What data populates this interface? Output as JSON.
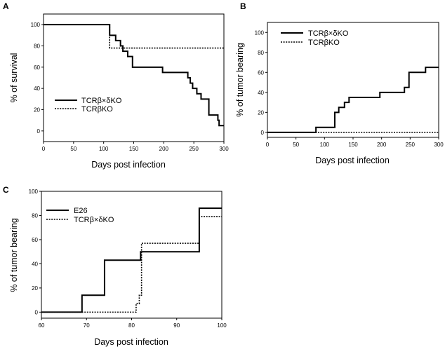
{
  "chart_data": [
    {
      "panel": "A",
      "type": "line",
      "step": true,
      "xlabel": "Days post infection",
      "ylabel": "% of survival",
      "xlim": [
        0,
        300
      ],
      "ylim": [
        -10,
        110
      ],
      "xticks": [
        0,
        50,
        100,
        150,
        200,
        250,
        300
      ],
      "yticks": [
        0,
        20,
        40,
        60,
        80,
        100
      ],
      "legend_position": "bottom-left",
      "series": [
        {
          "name": "TCRβ×δKO",
          "style": "solid",
          "x": [
            0,
            110,
            120,
            128,
            132,
            140,
            148,
            198,
            240,
            244,
            248,
            255,
            262,
            275,
            290,
            292,
            300
          ],
          "y": [
            100,
            90,
            85,
            80,
            75,
            70,
            60,
            55,
            50,
            45,
            40,
            35,
            30,
            15,
            10,
            5,
            5
          ]
        },
        {
          "name": "TCRβKO",
          "style": "dotted",
          "x": [
            0,
            110,
            300
          ],
          "y": [
            100,
            78,
            78
          ]
        }
      ]
    },
    {
      "panel": "B",
      "type": "line",
      "step": true,
      "xlabel": "Days post infection",
      "ylabel": "%  of tumor bearing",
      "xlim": [
        0,
        300
      ],
      "ylim": [
        -5,
        110
      ],
      "xticks": [
        0,
        50,
        100,
        150,
        200,
        250,
        300
      ],
      "yticks": [
        0,
        20,
        40,
        60,
        80,
        100
      ],
      "legend_position": "top-left",
      "series": [
        {
          "name": "TCRβ×δKO",
          "style": "solid",
          "x": [
            0,
            85,
            118,
            125,
            135,
            143,
            150,
            197,
            240,
            248,
            277,
            300
          ],
          "y": [
            0,
            5,
            20,
            25,
            30,
            35,
            35,
            40,
            45,
            60,
            65,
            65
          ]
        },
        {
          "name": "TCRβKO",
          "style": "dotted",
          "x": [
            0,
            300
          ],
          "y": [
            0,
            0
          ]
        }
      ]
    },
    {
      "panel": "C",
      "type": "line",
      "step": true,
      "xlabel": "Days post infection",
      "ylabel": "%  of tumor bearing",
      "xlim": [
        60,
        100
      ],
      "ylim": [
        -5,
        100
      ],
      "xticks": [
        60,
        70,
        80,
        90,
        100
      ],
      "yticks": [
        0,
        20,
        40,
        60,
        80,
        100
      ],
      "legend_position": "top-left",
      "series": [
        {
          "name": "E26",
          "style": "solid",
          "x": [
            60,
            69,
            74,
            82,
            95,
            100
          ],
          "y": [
            0,
            14,
            43,
            50,
            86,
            86
          ]
        },
        {
          "name": "TCRβ×δKO",
          "style": "dotted",
          "x": [
            60,
            81,
            81.7,
            82.2,
            95,
            100
          ],
          "y": [
            0,
            7,
            14,
            57,
            79,
            79
          ]
        }
      ]
    }
  ]
}
